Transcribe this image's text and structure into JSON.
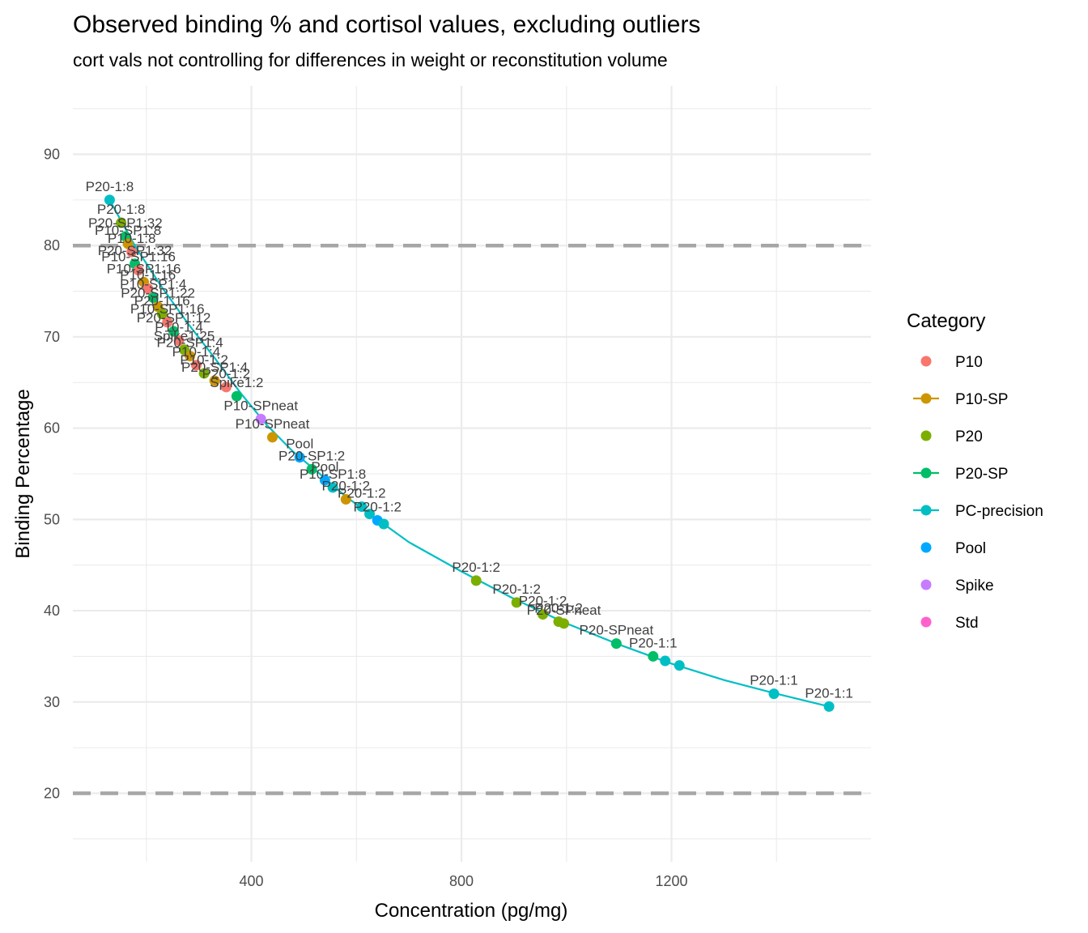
{
  "chart_data": {
    "type": "scatter",
    "title": "Observed binding % and cortisol values, excluding outliers",
    "subtitle": "cort vals not controlling for differences in weight or reconstitution volume",
    "xlabel": "Concentration (pg/mg)",
    "ylabel": "Binding Percentage",
    "xlim": [
      60,
      1580
    ],
    "ylim": [
      12.5,
      97.5
    ],
    "x_ticks": [
      {
        "value": 400,
        "label": "400"
      },
      {
        "value": 800,
        "label": "800"
      },
      {
        "value": 1200,
        "label": "1200"
      }
    ],
    "y_ticks": [
      {
        "value": 20,
        "label": "20"
      },
      {
        "value": 30,
        "label": "30"
      },
      {
        "value": 40,
        "label": "40"
      },
      {
        "value": 50,
        "label": "50"
      },
      {
        "value": 60,
        "label": "60"
      },
      {
        "value": 70,
        "label": "70"
      },
      {
        "value": 80,
        "label": "80"
      },
      {
        "value": 90,
        "label": "90"
      }
    ],
    "grid": true,
    "reference_lines": [
      20,
      80
    ],
    "legend": {
      "title": "Category",
      "position": "right",
      "entries": [
        {
          "label": "P10",
          "color": "#F8766D",
          "line": false
        },
        {
          "label": "P10-SP",
          "color": "#CD9600",
          "line": true
        },
        {
          "label": "P20",
          "color": "#7CAE00",
          "line": false
        },
        {
          "label": "P20-SP",
          "color": "#00BE67",
          "line": true
        },
        {
          "label": "PC-precision",
          "color": "#00BFC4",
          "line": true
        },
        {
          "label": "Pool",
          "color": "#00A9FF",
          "line": false
        },
        {
          "label": "Spike",
          "color": "#C77CFF",
          "line": false
        },
        {
          "label": "Std",
          "color": "#FF61CC",
          "line": false
        }
      ]
    },
    "fit_curve": {
      "color": "#00BFC4",
      "points": [
        [
          130,
          85.0
        ],
        [
          180,
          79.8
        ],
        [
          230,
          75.4
        ],
        [
          280,
          71.4
        ],
        [
          330,
          67.7
        ],
        [
          380,
          63.8
        ],
        [
          430,
          60.3
        ],
        [
          480,
          57.4
        ],
        [
          530,
          55.0
        ],
        [
          580,
          52.5
        ],
        [
          630,
          50.4
        ],
        [
          700,
          47.5
        ],
        [
          800,
          44.3
        ],
        [
          900,
          41.3
        ],
        [
          1000,
          38.6
        ],
        [
          1100,
          36.3
        ],
        [
          1200,
          34.2
        ],
        [
          1300,
          32.4
        ],
        [
          1400,
          30.9
        ],
        [
          1500,
          29.5
        ]
      ]
    },
    "points": [
      {
        "category": "PC-precision",
        "x": 130,
        "y": 85.0,
        "label": "P20-1:8"
      },
      {
        "category": "P20",
        "x": 152,
        "y": 82.5,
        "label": "P20-1:8"
      },
      {
        "category": "P20-SP",
        "x": 160,
        "y": 81.0,
        "label": "P20-SP1:32"
      },
      {
        "category": "P10-SP",
        "x": 165,
        "y": 80.2,
        "label": "P10-SP1:8"
      },
      {
        "category": "P10",
        "x": 172,
        "y": 79.3,
        "label": "P10-1:8"
      },
      {
        "category": "P20-SP",
        "x": 178,
        "y": 78.0,
        "label": "P20-SP1:32"
      },
      {
        "category": "P10",
        "x": 185,
        "y": 77.3,
        "label": "P10-SP1:16"
      },
      {
        "category": "P10-SP",
        "x": 195,
        "y": 76.0,
        "label": "P10-SP1:16"
      },
      {
        "category": "P10",
        "x": 203,
        "y": 75.3,
        "label": "P10-1:16"
      },
      {
        "category": "P20-SP",
        "x": 213,
        "y": 74.3,
        "label": "P10-SP1:4"
      },
      {
        "category": "P10-SP",
        "x": 222,
        "y": 73.3,
        "label": "P20-SP1:22"
      },
      {
        "category": "P20",
        "x": 230,
        "y": 72.5,
        "label": "P20-1:16"
      },
      {
        "category": "P10",
        "x": 240,
        "y": 71.6,
        "label": "P10-SP1:16"
      },
      {
        "category": "P20-SP",
        "x": 252,
        "y": 70.6,
        "label": "P20-SP1:12"
      },
      {
        "category": "P10",
        "x": 262,
        "y": 69.6,
        "label": "P10-1:4"
      },
      {
        "category": "P20",
        "x": 272,
        "y": 68.6,
        "label": "Spike1:25"
      },
      {
        "category": "P10-SP",
        "x": 283,
        "y": 67.9,
        "label": "P20-SP1:4"
      },
      {
        "category": "P10",
        "x": 295,
        "y": 66.9,
        "label": "P10-1:4"
      },
      {
        "category": "P20",
        "x": 310,
        "y": 66.0,
        "label": "P10-1:2"
      },
      {
        "category": "P10-SP",
        "x": 330,
        "y": 65.2,
        "label": "P20-SP1:4"
      },
      {
        "category": "P10",
        "x": 352,
        "y": 64.5,
        "label": "P20-1:2"
      },
      {
        "category": "P20-SP",
        "x": 372,
        "y": 63.5,
        "label": "Spike1:2"
      },
      {
        "category": "Spike",
        "x": 418,
        "y": 61.0,
        "label": "P10-SPneat"
      },
      {
        "category": "P10-SP",
        "x": 440,
        "y": 59.0,
        "label": "P10-SPneat"
      },
      {
        "category": "Pool",
        "x": 492,
        "y": 56.8,
        "label": "Pool"
      },
      {
        "category": "P20-SP",
        "x": 515,
        "y": 55.5,
        "label": "P20-SP1:2"
      },
      {
        "category": "Pool",
        "x": 540,
        "y": 54.3,
        "label": "Pool"
      },
      {
        "category": "PC-precision",
        "x": 555,
        "y": 53.5,
        "label": "P10-SP1:8"
      },
      {
        "category": "P10-SP",
        "x": 580,
        "y": 52.2,
        "label": "P20-1:2"
      },
      {
        "category": "PC-precision",
        "x": 610,
        "y": 51.4,
        "label": "P20-1:2"
      },
      {
        "category": "PC-precision",
        "x": 625,
        "y": 50.6,
        "label": ""
      },
      {
        "category": "Pool",
        "x": 640,
        "y": 49.9,
        "label": "P20-1:2"
      },
      {
        "category": "PC-precision",
        "x": 652,
        "y": 49.5,
        "label": ""
      },
      {
        "category": "P20",
        "x": 828,
        "y": 43.3,
        "label": "P20-1:2"
      },
      {
        "category": "P20",
        "x": 905,
        "y": 40.9,
        "label": "P20-1:2"
      },
      {
        "category": "P20",
        "x": 955,
        "y": 39.6,
        "label": "P20-1:2"
      },
      {
        "category": "P20",
        "x": 985,
        "y": 38.8,
        "label": "P20-1:2"
      },
      {
        "category": "P20",
        "x": 995,
        "y": 38.6,
        "label": "P20-SPneat"
      },
      {
        "category": "P20-SP",
        "x": 1095,
        "y": 36.4,
        "label": "P20-SPneat"
      },
      {
        "category": "P20-SP",
        "x": 1165,
        "y": 35.0,
        "label": "P20-1:1"
      },
      {
        "category": "PC-precision",
        "x": 1188,
        "y": 34.5,
        "label": ""
      },
      {
        "category": "PC-precision",
        "x": 1215,
        "y": 34.0,
        "label": ""
      },
      {
        "category": "PC-precision",
        "x": 1395,
        "y": 30.9,
        "label": "P20-1:1"
      },
      {
        "category": "PC-precision",
        "x": 1500,
        "y": 29.5,
        "label": "P20-1:1"
      }
    ]
  }
}
